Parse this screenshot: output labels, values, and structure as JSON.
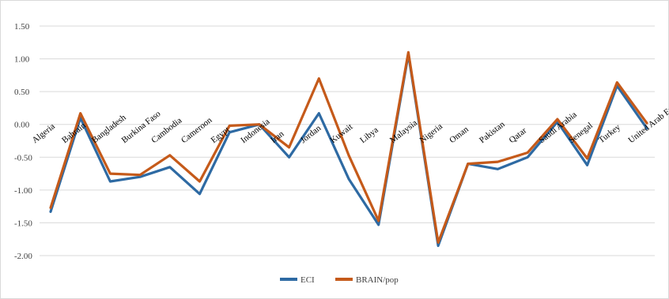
{
  "chart_data": {
    "type": "line",
    "title": "",
    "xlabel": "",
    "ylabel": "",
    "ylim": [
      -2.0,
      1.5
    ],
    "ytick_step": 0.5,
    "grid": "horizontal",
    "legend_position": "bottom-center",
    "categories": [
      "Algeria",
      "Bahrain",
      "Bangladesh",
      "Burkina Faso",
      "Cambodia",
      "Cameroon",
      "Egypt",
      "Indonesia",
      "Iran",
      "Jordan",
      "Kuwait",
      "Libya",
      "Malaysia",
      "Nigeria",
      "Oman",
      "Pakistan",
      "Qatar",
      "Saudi Arabia",
      "Senegal",
      "Turkey",
      "United Arab Emirates"
    ],
    "series": [
      {
        "name": "ECI",
        "color": "#2e6aa3",
        "values": [
          -1.33,
          0.1,
          -0.87,
          -0.8,
          -0.65,
          -1.06,
          -0.12,
          0.0,
          -0.5,
          0.17,
          -0.83,
          -1.53,
          1.07,
          -1.85,
          -0.6,
          -0.68,
          -0.5,
          0.04,
          -0.62,
          0.59,
          -0.06
        ]
      },
      {
        "name": "BRAIN/pop",
        "color": "#c55a1a",
        "values": [
          -1.27,
          0.17,
          -0.75,
          -0.77,
          -0.47,
          -0.87,
          -0.02,
          0.0,
          -0.35,
          0.7,
          -0.47,
          -1.47,
          1.1,
          -1.8,
          -0.6,
          -0.57,
          -0.43,
          0.08,
          -0.52,
          0.64,
          0.02
        ]
      }
    ]
  }
}
